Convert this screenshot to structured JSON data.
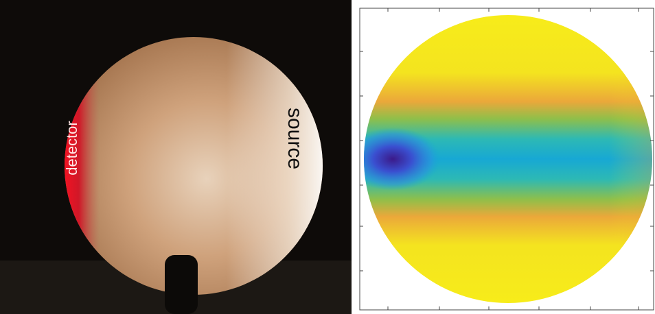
{
  "photo": {
    "labels": {
      "detector": "detector",
      "source": "source"
    }
  }
}
